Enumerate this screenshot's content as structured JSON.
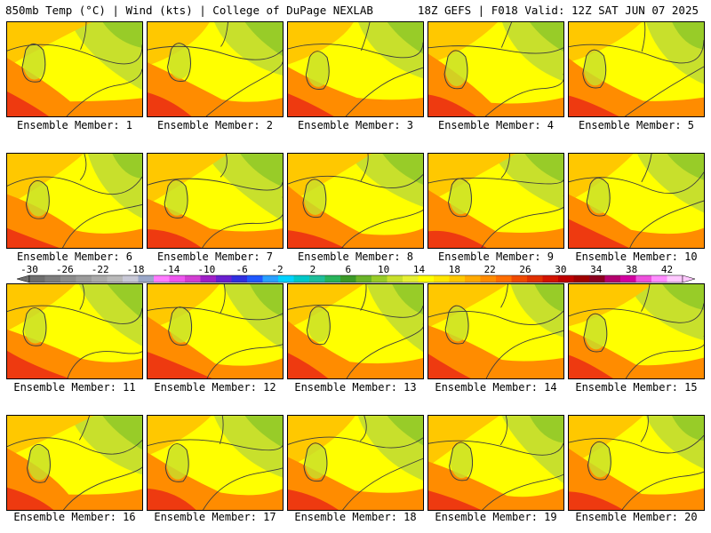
{
  "header": {
    "title_left": "850mb Temp (°C) | Wind (kts) | College of DuPage NEXLAB",
    "title_right": "18Z GEFS | F018 Valid: 12Z SAT JUN 07 2025"
  },
  "panels": [
    {
      "label": "Ensemble Member: 1"
    },
    {
      "label": "Ensemble Member: 2"
    },
    {
      "label": "Ensemble Member: 3"
    },
    {
      "label": "Ensemble Member: 4"
    },
    {
      "label": "Ensemble Member: 5"
    },
    {
      "label": "Ensemble Member: 6"
    },
    {
      "label": "Ensemble Member: 7"
    },
    {
      "label": "Ensemble Member: 8"
    },
    {
      "label": "Ensemble Member: 9"
    },
    {
      "label": "Ensemble Member: 10"
    },
    {
      "label": "Ensemble Member: 11"
    },
    {
      "label": "Ensemble Member: 12"
    },
    {
      "label": "Ensemble Member: 13"
    },
    {
      "label": "Ensemble Member: 14"
    },
    {
      "label": "Ensemble Member: 15"
    },
    {
      "label": "Ensemble Member: 16"
    },
    {
      "label": "Ensemble Member: 17"
    },
    {
      "label": "Ensemble Member: 18"
    },
    {
      "label": "Ensemble Member: 19"
    },
    {
      "label": "Ensemble Member: 20"
    }
  ],
  "colorbar": {
    "tick_labels": [
      "-30",
      "-26",
      "-22",
      "-18",
      "-14",
      "-10",
      "-6",
      "-2",
      "2",
      "6",
      "10",
      "14",
      "18",
      "22",
      "26",
      "30",
      "34",
      "38",
      "42"
    ],
    "colors": [
      "#6e6e6e",
      "#7d7d7d",
      "#8c8c8c",
      "#9b9b9b",
      "#aaaaaa",
      "#b9b9b9",
      "#c8c8d6",
      "#9aa7c8",
      "#ff7cff",
      "#ee55ee",
      "#d23ed2",
      "#a020c8",
      "#6a20d0",
      "#3030e0",
      "#2058ff",
      "#2aa0ff",
      "#00d2ff",
      "#00c8c8",
      "#1ebe9a",
      "#28b45a",
      "#3c9a28",
      "#6ab428",
      "#98cc28",
      "#c8e02c",
      "#e6f034",
      "#ffff00",
      "#ffe600",
      "#ffc800",
      "#ffaa00",
      "#ff8c00",
      "#ff6e00",
      "#f04a00",
      "#e03000",
      "#d21400",
      "#be0000",
      "#a00000",
      "#8c0020",
      "#b4006e",
      "#d200a0",
      "#ee50dc",
      "#ff8cff",
      "#ffc8ff"
    ]
  },
  "map_colors": {
    "outline": "#3c3c3c",
    "hot": "#ee3a10",
    "warm": "#ff8c00",
    "mid": "#ffc800",
    "yellow": "#ffff00",
    "lightgreen": "#c8e02c",
    "green": "#98cc28",
    "darkgreen": "#6ab428"
  }
}
